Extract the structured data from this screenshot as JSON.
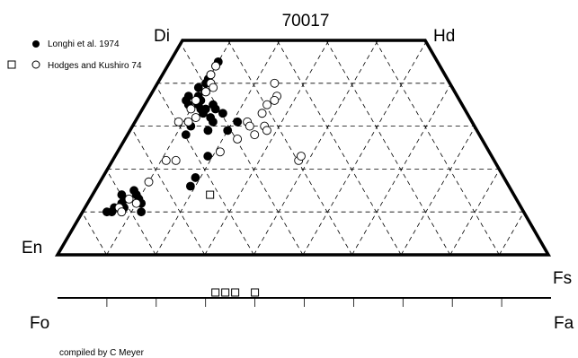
{
  "chart_data": {
    "type": "scatter",
    "title": "70017",
    "corner_labels": {
      "top_left": "Di",
      "top_right": "Hd",
      "bottom_left": "En",
      "bottom_right": "Fs"
    },
    "olivine_axis": {
      "left": "Fo",
      "right": "Fa"
    },
    "legend": {
      "placement": "top-left",
      "entries": [
        {
          "label": "Longhi et al. 1974",
          "markers": [
            "filled-circle"
          ]
        },
        {
          "label": "Hodges and Kushiro 74",
          "markers": [
            "open-square",
            "open-circle"
          ]
        }
      ]
    },
    "credit": "compiled by C Meyer",
    "grid": true,
    "series": [
      {
        "name": "Longhi et al. 1974",
        "marker": "filled-circle",
        "color": "#000000",
        "points": [
          {
            "fs": 10,
            "wo": 45
          },
          {
            "fs": 10,
            "wo": 44
          },
          {
            "fs": 10,
            "wo": 42
          },
          {
            "fs": 10,
            "wo": 41
          },
          {
            "fs": 10,
            "wo": 40
          },
          {
            "fs": 9,
            "wo": 39
          },
          {
            "fs": 11,
            "wo": 38
          },
          {
            "fs": 8,
            "wo": 37
          },
          {
            "fs": 10,
            "wo": 37
          },
          {
            "fs": 8,
            "wo": 36
          },
          {
            "fs": 11,
            "wo": 36
          },
          {
            "fs": 9,
            "wo": 35
          },
          {
            "fs": 11,
            "wo": 35
          },
          {
            "fs": 14,
            "wo": 35
          },
          {
            "fs": 12,
            "wo": 34
          },
          {
            "fs": 13,
            "wo": 34
          },
          {
            "fs": 15,
            "wo": 34
          },
          {
            "fs": 13,
            "wo": 33
          },
          {
            "fs": 15,
            "wo": 32
          },
          {
            "fs": 17,
            "wo": 33
          },
          {
            "fs": 16,
            "wo": 31
          },
          {
            "fs": 12,
            "wo": 30
          },
          {
            "fs": 16,
            "wo": 29
          },
          {
            "fs": 21,
            "wo": 31
          },
          {
            "fs": 20,
            "wo": 29
          },
          {
            "fs": 12,
            "wo": 28
          },
          {
            "fs": 19,
            "wo": 23
          },
          {
            "fs": 19,
            "wo": 18
          },
          {
            "fs": 19,
            "wo": 16
          },
          {
            "fs": 6,
            "wo": 14
          },
          {
            "fs": 8,
            "wo": 15
          },
          {
            "fs": 7,
            "wo": 13
          },
          {
            "fs": 9,
            "wo": 14
          },
          {
            "fs": 7,
            "wo": 12
          },
          {
            "fs": 8,
            "wo": 11
          },
          {
            "fs": 10,
            "wo": 13
          },
          {
            "fs": 11,
            "wo": 12
          },
          {
            "fs": 6,
            "wo": 11
          },
          {
            "fs": 12,
            "wo": 10
          },
          {
            "fs": 5,
            "wo": 10
          },
          {
            "fs": 6,
            "wo": 10
          }
        ]
      },
      {
        "name": "Hodges and Kushiro 74",
        "marker": "open-circle",
        "color": "#000000",
        "points": [
          {
            "fs": 10,
            "wo": 44
          },
          {
            "fs": 10,
            "wo": 42
          },
          {
            "fs": 11,
            "wo": 40
          },
          {
            "fs": 12,
            "wo": 39
          },
          {
            "fs": 11,
            "wo": 38
          },
          {
            "fs": 10,
            "wo": 36
          },
          {
            "fs": 10,
            "wo": 34
          },
          {
            "fs": 12,
            "wo": 32
          },
          {
            "fs": 9,
            "wo": 31
          },
          {
            "fs": 11,
            "wo": 31
          },
          {
            "fs": 24,
            "wo": 40
          },
          {
            "fs": 26,
            "wo": 37
          },
          {
            "fs": 26,
            "wo": 36
          },
          {
            "fs": 25,
            "wo": 35
          },
          {
            "fs": 25,
            "wo": 33
          },
          {
            "fs": 23,
            "wo": 31
          },
          {
            "fs": 24,
            "wo": 30
          },
          {
            "fs": 27,
            "wo": 30
          },
          {
            "fs": 28,
            "wo": 29
          },
          {
            "fs": 26,
            "wo": 28
          },
          {
            "fs": 23,
            "wo": 27
          },
          {
            "fs": 21,
            "wo": 24
          },
          {
            "fs": 38,
            "wo": 22
          },
          {
            "fs": 38,
            "wo": 23
          },
          {
            "fs": 11,
            "wo": 22
          },
          {
            "fs": 13,
            "wo": 22
          },
          {
            "fs": 10,
            "wo": 17
          },
          {
            "fs": 8,
            "wo": 13
          },
          {
            "fs": 10,
            "wo": 12
          },
          {
            "fs": 7,
            "wo": 11
          },
          {
            "fs": 8,
            "wo": 10
          }
        ]
      },
      {
        "name": "Hodges and Kushiro 74",
        "marker": "open-square",
        "color": "#000000",
        "points": [
          {
            "fs": 24,
            "wo": 14
          }
        ]
      },
      {
        "name": "Hodges and Kushiro 74",
        "marker": "open-square",
        "axis": "olivine",
        "color": "#000000",
        "points": [
          {
            "fa": 32
          },
          {
            "fa": 34
          },
          {
            "fa": 36
          },
          {
            "fa": 40
          }
        ]
      }
    ]
  }
}
